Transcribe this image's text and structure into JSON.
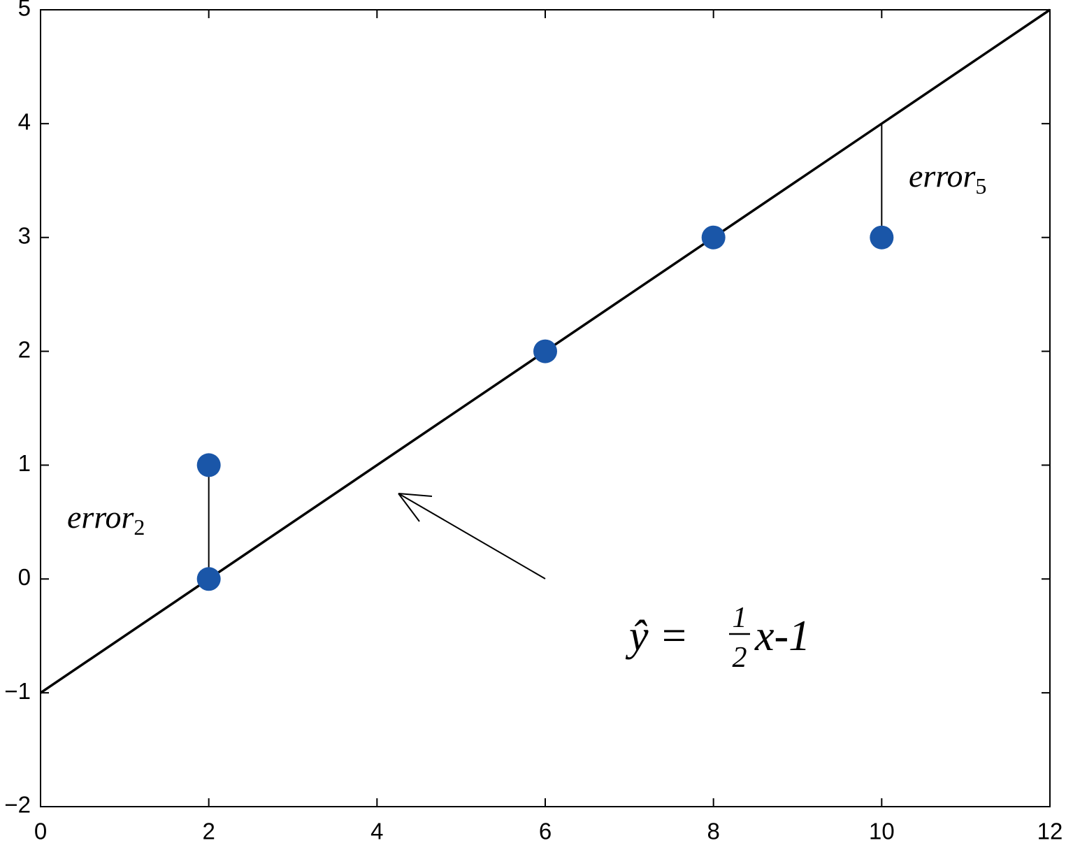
{
  "chart_data": {
    "type": "scatter",
    "xlim": [
      0,
      12
    ],
    "ylim": [
      -2,
      5
    ],
    "xticks": [
      0,
      2,
      4,
      6,
      8,
      10,
      12
    ],
    "yticks": [
      {
        "value": -2,
        "label": "−2"
      },
      {
        "value": -1,
        "label": "−1"
      },
      0,
      1,
      2,
      3,
      4,
      5
    ],
    "points": {
      "x": [
        2,
        2,
        6,
        8,
        10
      ],
      "y": [
        0,
        1,
        2,
        3,
        3
      ],
      "color": "#1a56a8"
    },
    "fit_line": {
      "x": [
        0,
        12
      ],
      "y": [
        -1,
        5
      ],
      "color": "#000000"
    },
    "residuals": [
      {
        "x": 2,
        "y0": 0,
        "y1": 1
      },
      {
        "x": 10,
        "y0": 4,
        "y1": 3
      }
    ],
    "annotations": [
      {
        "text": "error",
        "subscript": "2"
      },
      {
        "text": "error",
        "subscript": "5"
      }
    ],
    "equation": {
      "lhs": "ŷ =",
      "numerator": "1",
      "denominator": "2",
      "rhs": "x-1"
    }
  }
}
